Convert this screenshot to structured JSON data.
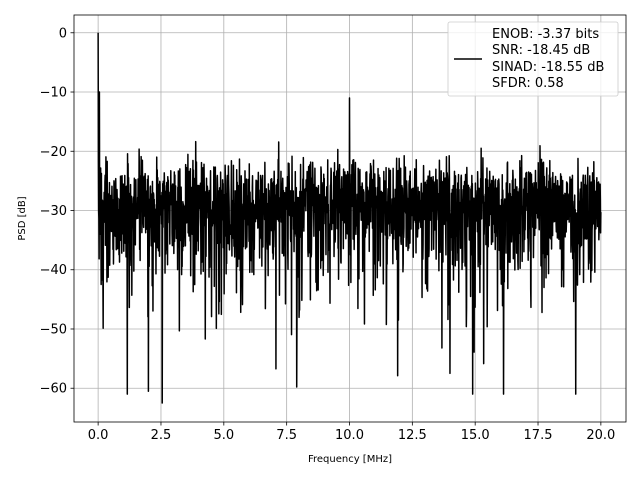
{
  "chart_data": {
    "type": "line",
    "title": "",
    "xlabel": "Frequency [MHz]",
    "ylabel": "PSD [dB]",
    "xlim": [
      -0.96,
      21.0
    ],
    "ylim": [
      -65.7,
      3.0
    ],
    "grid": true,
    "xticks": [
      "0.0",
      "2.5",
      "5.0",
      "7.5",
      "10.0",
      "12.5",
      "15.0",
      "17.5",
      "20.0"
    ],
    "xtick_values": [
      0,
      2.5,
      5,
      7.5,
      10,
      12.5,
      15,
      17.5,
      20
    ],
    "yticks": [
      "0",
      "−10",
      "−20",
      "−30",
      "−40",
      "−50",
      "−60"
    ],
    "ytick_values": [
      0,
      -10,
      -20,
      -30,
      -40,
      -50,
      -60
    ],
    "series": [
      {
        "name": "ENOB: -3.37 bits\nSNR: -18.45 dB\nSINAD: -18.55 dB\nSFDR: 0.58",
        "color": "#000000",
        "description": "noise-like PSD across 0–20 MHz, typical band -40 to -18 dB with dips to about -62 dB",
        "freq_range_mhz": [
          0,
          20
        ],
        "num_points": 2000,
        "median_db": -29.5,
        "notable_points": [
          {
            "x": 0.0,
            "y": 0.0
          },
          {
            "x": 0.05,
            "y": -10.0
          },
          {
            "x": 10.0,
            "y": -11.0
          },
          {
            "x": 2.55,
            "y": -62.5
          },
          {
            "x": 14.9,
            "y": -61.0
          },
          {
            "x": 19.0,
            "y": -61.0
          },
          {
            "x": 2.0,
            "y": -60.5
          },
          {
            "x": 7.9,
            "y": -59.8
          }
        ]
      }
    ],
    "legend": {
      "placement": "top-right",
      "lines": [
        "ENOB: -3.37 bits",
        "SNR: -18.45 dB",
        "SINAD: -18.55 dB",
        "SFDR: 0.58"
      ]
    }
  }
}
